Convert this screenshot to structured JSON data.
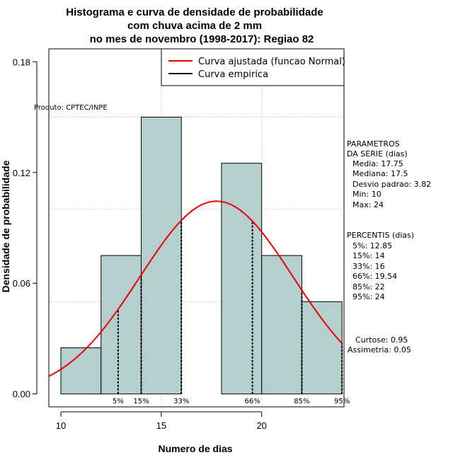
{
  "chart_data": {
    "type": "bar",
    "title_lines": [
      "Histograma e curva de densidade de probabilidade",
      "com chuva acima de 2 mm",
      "no mes de novembro (1998-2017): Regiao 82"
    ],
    "xlabel": "Numero de dias",
    "ylabel": "Densidade de probabilidade",
    "xlim": [
      9.4,
      24.1
    ],
    "ylim": [
      -0.007,
      0.187
    ],
    "x_ticks": [
      10,
      15,
      20
    ],
    "y_ticks": [
      0.0,
      0.06,
      0.12,
      0.18
    ],
    "y_tick_labels": [
      "0.00",
      "0.06",
      "0.12",
      "0.18"
    ],
    "grid_x": [
      15,
      20
    ],
    "grid_y": [
      0.05,
      0.1,
      0.15
    ],
    "histogram": {
      "bin_edges": [
        10,
        12,
        14,
        16,
        18,
        20,
        22,
        24
      ],
      "densities": [
        0.025,
        0.075,
        0.15,
        0.0,
        0.125,
        0.075,
        0.05
      ],
      "fill": "#b5cfcf"
    },
    "normal_curve": {
      "mean": 17.75,
      "sd": 3.82,
      "color": "#ee0000",
      "label": "Curva ajustada (funcao Normal)"
    },
    "empirical_curve": {
      "color": "#000000",
      "label": "Curva empirica"
    },
    "percentiles_marks": [
      {
        "label": "5%",
        "x": 12.85
      },
      {
        "label": "15%",
        "x": 14
      },
      {
        "label": "33%",
        "x": 16
      },
      {
        "label": "66%",
        "x": 19.54
      },
      {
        "label": "85%",
        "x": 22
      },
      {
        "label": "95%",
        "x": 24
      }
    ],
    "credit": "Produto: CPTEC/INPE",
    "params_block": {
      "header": [
        "PARAMETROS",
        "DA SERIE (dias)"
      ],
      "lines": [
        "Media: 17.75",
        "Mediana: 17.5",
        "Desvio padrao: 3.82",
        "Min: 10",
        "Max: 24"
      ]
    },
    "percentis_block": {
      "header": "PERCENTIS (dias)",
      "lines": [
        "5%: 12.85",
        "15%: 14",
        "33%: 16",
        "66%: 19.54",
        "85%: 22",
        "95%: 24"
      ]
    },
    "shape_block": {
      "lines": [
        "Curtose: 0.95",
        "Assimetria: 0.05"
      ]
    }
  }
}
